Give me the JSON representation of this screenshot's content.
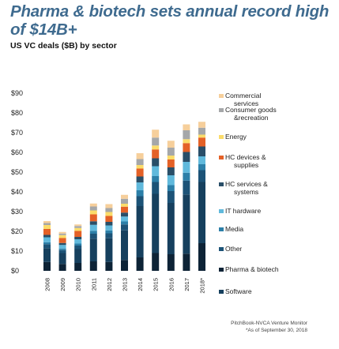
{
  "page": {
    "title": "Pharma & biotech sets annual record high of $14B+",
    "subtitle": "US VC deals ($B) by sector",
    "source": "PitchBook-NVCA Venture Monitor",
    "note": "*As of September 30, 2018"
  },
  "chart_data": {
    "type": "bar",
    "stacked": true,
    "title": "Pharma & biotech sets annual record high of $14B+",
    "subtitle": "US VC deals ($B) by sector",
    "xlabel": "",
    "ylabel": "",
    "ylim": [
      0,
      90
    ],
    "y_ticks": [
      "$0",
      "$10",
      "$20",
      "$30",
      "$40",
      "$50",
      "$60",
      "$70",
      "$80",
      "$90"
    ],
    "grid": false,
    "legend_position": "right",
    "categories": [
      "2008",
      "2009",
      "2010",
      "2011",
      "2012",
      "2013",
      "2014",
      "2015",
      "2016",
      "2017",
      "2018*"
    ],
    "series": [
      {
        "name": "Pharma & biotech",
        "color": "#0d2336",
        "values": [
          4.5,
          3.5,
          4.0,
          4.8,
          4.5,
          5.5,
          6.8,
          9.0,
          8.4,
          8.7,
          14.0
        ]
      },
      {
        "name": "Software",
        "color": "#16405e",
        "values": [
          7.0,
          5.5,
          7.0,
          11.5,
          12.0,
          15.0,
          26.0,
          30.0,
          26.0,
          30.0,
          31.0
        ]
      },
      {
        "name": "Other",
        "color": "#1c5377",
        "values": [
          2.0,
          1.5,
          1.8,
          2.5,
          2.5,
          3.0,
          5.0,
          6.0,
          6.0,
          7.0,
          6.0
        ]
      },
      {
        "name": "Media",
        "color": "#2c7fa8",
        "values": [
          1.0,
          0.8,
          1.0,
          1.5,
          1.5,
          1.5,
          3.0,
          3.0,
          3.0,
          4.0,
          3.0
        ]
      },
      {
        "name": "IT hardware",
        "color": "#60b9dc",
        "values": [
          2.5,
          1.8,
          2.2,
          3.0,
          2.5,
          2.5,
          4.0,
          5.0,
          5.0,
          5.5,
          4.0
        ]
      },
      {
        "name": "HC services & systems",
        "color": "#294e68",
        "values": [
          1.2,
          1.0,
          1.2,
          1.8,
          1.8,
          2.0,
          3.0,
          4.0,
          4.0,
          5.0,
          5.0
        ]
      },
      {
        "name": "HC devices & supplies",
        "color": "#e46127",
        "values": [
          3.0,
          2.5,
          3.0,
          3.5,
          3.0,
          3.0,
          4.0,
          4.5,
          4.0,
          4.5,
          4.5
        ]
      },
      {
        "name": "Energy",
        "color": "#fbdc6a",
        "values": [
          2.0,
          1.5,
          1.5,
          2.0,
          2.0,
          1.5,
          1.8,
          2.0,
          2.0,
          2.0,
          1.5
        ]
      },
      {
        "name": "Consumer goods & recreation",
        "color": "#a5a7a9",
        "values": [
          1.0,
          0.8,
          1.0,
          2.0,
          2.0,
          2.5,
          3.0,
          4.0,
          4.0,
          4.5,
          3.5
        ]
      },
      {
        "name": "Commercial services",
        "color": "#f6cf9b",
        "values": [
          1.0,
          0.8,
          0.8,
          1.5,
          2.0,
          2.0,
          3.0,
          4.0,
          3.5,
          3.0,
          3.0
        ]
      }
    ]
  },
  "legend": {
    "items": [
      {
        "lines": [
          "Commercial",
          "services"
        ],
        "color": "#f6cf9b"
      },
      {
        "lines": [
          "Consumer goods",
          "&recreation"
        ],
        "color": "#a5a7a9"
      },
      {
        "lines": [
          "Energy"
        ],
        "color": "#fbdc6a"
      },
      {
        "lines": [
          "HC devices &",
          "supplies"
        ],
        "color": "#e46127"
      },
      {
        "lines": [
          "HC services &",
          "systems"
        ],
        "color": "#294e68"
      },
      {
        "lines": [
          "IT hardware"
        ],
        "color": "#60b9dc"
      },
      {
        "lines": [
          "Media"
        ],
        "color": "#2c7fa8"
      },
      {
        "lines": [
          "Other"
        ],
        "color": "#1c5377"
      },
      {
        "lines": [
          "Pharma & biotech"
        ],
        "color": "#0d2336"
      },
      {
        "lines": [
          "Software"
        ],
        "color": "#16405e"
      }
    ]
  }
}
